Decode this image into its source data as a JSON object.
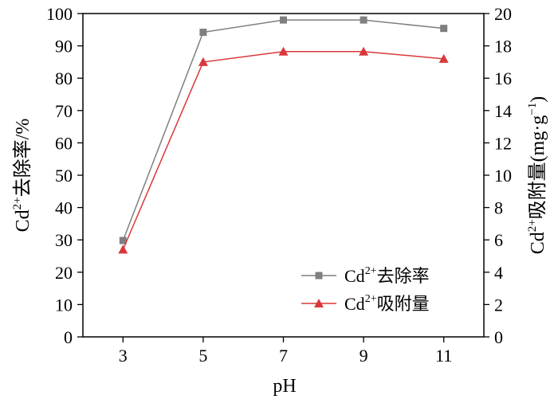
{
  "chart_data": {
    "type": "line",
    "xlabel": "pH",
    "x": [
      3,
      5,
      7,
      9,
      11
    ],
    "xticks": [
      "3",
      "5",
      "7",
      "9",
      "11"
    ],
    "xlim": [
      2,
      12
    ],
    "left_axis": {
      "label_base": "Cd",
      "label_sup": "2+",
      "label_rest": "去除率/%",
      "ylim": [
        0,
        100
      ],
      "ticks": [
        "0",
        "10",
        "20",
        "30",
        "40",
        "50",
        "60",
        "70",
        "80",
        "90",
        "100"
      ]
    },
    "right_axis": {
      "label_base": "Cd",
      "label_sup": "2+",
      "label_rest": "吸附量(mg·g",
      "label_sup2": "−1",
      "label_end": ")",
      "ylim": [
        0,
        20
      ],
      "ticks": [
        "0",
        "2",
        "4",
        "6",
        "8",
        "10",
        "12",
        "14",
        "16",
        "18",
        "20"
      ]
    },
    "series": [
      {
        "name_base": "Cd",
        "name_sup": "2+",
        "name_rest": "去除率",
        "axis": "left",
        "marker": "square",
        "color": "#7f7f7f",
        "values": [
          29.8,
          94.2,
          98.0,
          98.0,
          95.4
        ]
      },
      {
        "name_base": "Cd",
        "name_sup": "2+",
        "name_rest": "吸附量",
        "axis": "right",
        "marker": "triangle",
        "color": "#d9383a",
        "values": [
          5.4,
          17.0,
          17.65,
          17.65,
          17.2
        ]
      }
    ],
    "legend_position": "bottom-right",
    "grid": false
  }
}
